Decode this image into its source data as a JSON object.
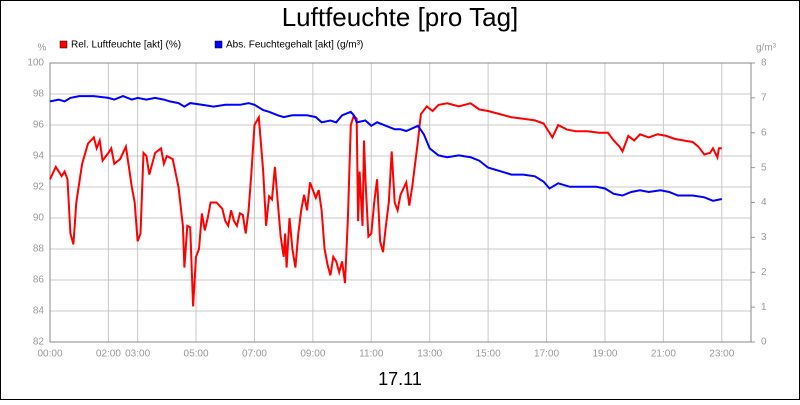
{
  "chart_data": {
    "type": "line",
    "title": "Luftfeuchte [pro Tag]",
    "x_label": "17.11",
    "y_label": "%",
    "y2_label": "g/m³",
    "xlim": [
      0,
      24
    ],
    "xticks": [
      {
        "value": 0,
        "label": "00:00"
      },
      {
        "value": 2,
        "label": "02:00"
      },
      {
        "value": 3,
        "label": "03:00"
      },
      {
        "value": 5,
        "label": "05:00"
      },
      {
        "value": 7,
        "label": "07:00"
      },
      {
        "value": 9,
        "label": "09:00"
      },
      {
        "value": 11,
        "label": "11:00"
      },
      {
        "value": 13,
        "label": "13:00"
      },
      {
        "value": 15,
        "label": "15:00"
      },
      {
        "value": 17,
        "label": "17:00"
      },
      {
        "value": 19,
        "label": "19:00"
      },
      {
        "value": 21,
        "label": "21:00"
      },
      {
        "value": 23,
        "label": "23:00"
      }
    ],
    "ylim": [
      82,
      100
    ],
    "yticks": [
      82,
      84,
      86,
      88,
      90,
      92,
      94,
      96,
      98,
      100
    ],
    "y2lim": [
      0,
      8
    ],
    "y2ticks": [
      0,
      1,
      2,
      3,
      4,
      5,
      6,
      7,
      8
    ],
    "grid": true,
    "series": [
      {
        "name": "Rel. Luftfeuchte [akt] (%)",
        "color": "#ff0000",
        "x": [
          0,
          0.2,
          0.4,
          0.5,
          0.6,
          0.7,
          0.8,
          0.9,
          1.1,
          1.3,
          1.5,
          1.6,
          1.7,
          1.8,
          2.0,
          2.1,
          2.2,
          2.4,
          2.6,
          2.8,
          2.9,
          3.0,
          3.1,
          3.2,
          3.3,
          3.4,
          3.6,
          3.8,
          3.9,
          4.0,
          4.2,
          4.4,
          4.55,
          4.6,
          4.7,
          4.8,
          4.9,
          5.0,
          5.1,
          5.2,
          5.3,
          5.4,
          5.5,
          5.7,
          5.9,
          6.0,
          6.1,
          6.2,
          6.3,
          6.4,
          6.5,
          6.6,
          6.7,
          6.8,
          6.9,
          7.0,
          7.15,
          7.3,
          7.4,
          7.5,
          7.6,
          7.7,
          7.8,
          7.9,
          8.0,
          8.05,
          8.1,
          8.2,
          8.3,
          8.4,
          8.5,
          8.6,
          8.7,
          8.8,
          8.9,
          9.0,
          9.1,
          9.2,
          9.3,
          9.4,
          9.5,
          9.6,
          9.7,
          9.8,
          9.9,
          10.0,
          10.1,
          10.2,
          10.3,
          10.4,
          10.5,
          10.55,
          10.6,
          10.7,
          10.75,
          10.8,
          10.9,
          11.0,
          11.1,
          11.2,
          11.3,
          11.4,
          11.5,
          11.6,
          11.7,
          11.8,
          11.9,
          12.0,
          12.2,
          12.3,
          12.4,
          12.6,
          12.7,
          12.9,
          13.1,
          13.3,
          13.6,
          14.0,
          14.4,
          14.7,
          15.0,
          15.4,
          15.8,
          16.2,
          16.6,
          16.9,
          17.1,
          17.2,
          17.4,
          17.7,
          18.0,
          18.4,
          18.8,
          19.1,
          19.3,
          19.5,
          19.6,
          19.8,
          20.0,
          20.2,
          20.5,
          20.8,
          21.1,
          21.4,
          21.7,
          22.0,
          22.2,
          22.4,
          22.6,
          22.7,
          22.85,
          22.9,
          23.0
        ],
        "values": [
          92.5,
          93.3,
          92.7,
          93.0,
          92.5,
          89,
          88.3,
          91,
          93.5,
          94.8,
          95.2,
          94.5,
          95.0,
          93.7,
          94.2,
          94.5,
          93.5,
          93.8,
          94.6,
          92,
          91,
          88.5,
          89,
          94.2,
          94,
          92.8,
          94.2,
          94.5,
          93.5,
          94,
          93.8,
          92,
          89.5,
          86.8,
          89.5,
          89.4,
          84.3,
          87.5,
          88,
          90.3,
          89.2,
          90,
          91,
          91,
          90.6,
          89.8,
          89.5,
          90.5,
          89.8,
          89.5,
          90.3,
          90.2,
          89,
          90.5,
          93,
          96,
          96.5,
          93,
          89.5,
          91.4,
          91.2,
          93.3,
          91,
          88.8,
          87.5,
          89,
          86.8,
          90,
          88,
          86.8,
          89,
          90.5,
          91.5,
          90.5,
          92.3,
          91.8,
          91.3,
          91.8,
          90.5,
          88,
          87,
          86.3,
          87.5,
          87.2,
          86.5,
          87.2,
          85.8,
          90,
          96,
          96.6,
          96.4,
          89.8,
          93,
          89.5,
          95,
          92.5,
          88.8,
          89,
          91,
          92.5,
          88.5,
          87.8,
          89.5,
          91,
          94.3,
          91,
          90.5,
          91.5,
          92.3,
          90.8,
          92,
          95,
          96.7,
          97.2,
          96.9,
          97.3,
          97.4,
          97.2,
          97.4,
          97,
          96.9,
          96.7,
          96.5,
          96.4,
          96.3,
          96.1,
          95.5,
          95.2,
          96.0,
          95.7,
          95.6,
          95.6,
          95.5,
          95.5,
          95.0,
          94.6,
          94.3,
          95.3,
          95.0,
          95.4,
          95.2,
          95.4,
          95.3,
          95.1,
          95.0,
          94.9,
          94.6,
          94.1,
          94.2,
          94.5,
          93.9,
          94.5,
          94.5
        ]
      },
      {
        "name": "Abs. Feuchtegehalt [akt] (g/m³)",
        "color": "#0000ff",
        "axis": "y2",
        "x": [
          0,
          0.3,
          0.5,
          0.7,
          1.0,
          1.5,
          2.0,
          2.2,
          2.5,
          2.8,
          3.0,
          3.3,
          3.6,
          3.9,
          4.1,
          4.4,
          4.6,
          4.8,
          5.2,
          5.6,
          6.0,
          6.5,
          6.8,
          7.0,
          7.3,
          7.5,
          7.8,
          8.0,
          8.3,
          8.8,
          9.1,
          9.3,
          9.6,
          9.8,
          10.0,
          10.3,
          10.4,
          10.5,
          10.8,
          11.0,
          11.2,
          11.5,
          11.8,
          12.0,
          12.2,
          12.6,
          12.8,
          13.0,
          13.3,
          13.6,
          14.0,
          14.4,
          14.7,
          15.0,
          15.4,
          15.8,
          16.2,
          16.6,
          16.9,
          17.1,
          17.4,
          17.8,
          18.2,
          18.7,
          19.0,
          19.3,
          19.6,
          19.9,
          20.2,
          20.5,
          20.9,
          21.2,
          21.5,
          22.0,
          22.4,
          22.7,
          23.0
        ],
        "values": [
          6.9,
          6.95,
          6.9,
          7.0,
          7.05,
          7.05,
          7.0,
          6.95,
          7.05,
          6.95,
          7.0,
          6.95,
          7.0,
          6.95,
          6.9,
          6.85,
          6.75,
          6.85,
          6.8,
          6.75,
          6.8,
          6.8,
          6.85,
          6.8,
          6.65,
          6.6,
          6.5,
          6.45,
          6.5,
          6.5,
          6.45,
          6.3,
          6.35,
          6.3,
          6.5,
          6.6,
          6.5,
          6.3,
          6.35,
          6.2,
          6.3,
          6.2,
          6.1,
          6.1,
          6.05,
          6.2,
          5.95,
          5.55,
          5.35,
          5.3,
          5.35,
          5.3,
          5.2,
          5.0,
          4.9,
          4.8,
          4.8,
          4.75,
          4.6,
          4.4,
          4.55,
          4.45,
          4.45,
          4.45,
          4.4,
          4.25,
          4.2,
          4.3,
          4.35,
          4.3,
          4.35,
          4.3,
          4.2,
          4.2,
          4.15,
          4.05,
          4.1
        ]
      }
    ]
  }
}
